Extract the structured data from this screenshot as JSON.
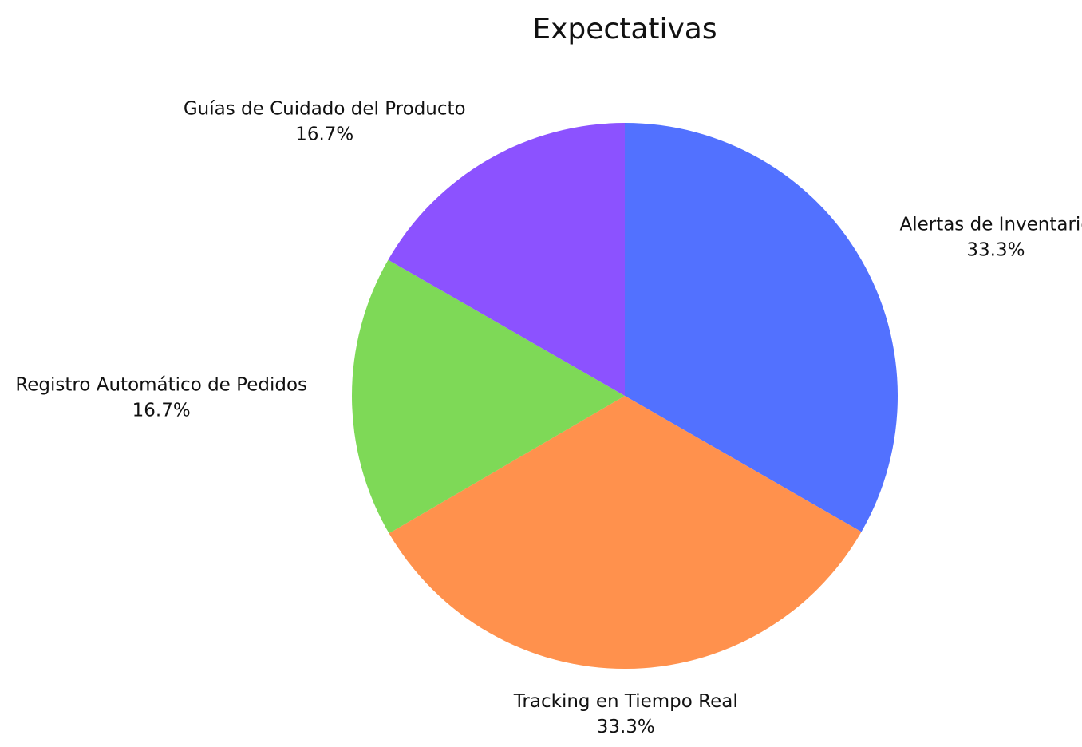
{
  "chart_data": {
    "type": "pie",
    "title": "Expectativas",
    "start_angle_deg": 0,
    "direction": "clockwise",
    "slices": [
      {
        "label": "Alertas de Inventario",
        "value": 33.3,
        "percent_label": "33.3%",
        "color": "#5271ff"
      },
      {
        "label": "Tracking en Tiempo Real",
        "value": 33.3,
        "percent_label": "33.3%",
        "color": "#ff914d"
      },
      {
        "label": "Registro Automático de Pedidos",
        "value": 16.7,
        "percent_label": "16.7%",
        "color": "#7ed957"
      },
      {
        "label": "Guías de Cuidado del Producto",
        "value": 16.7,
        "percent_label": "16.7%",
        "color": "#8c52ff"
      }
    ]
  }
}
